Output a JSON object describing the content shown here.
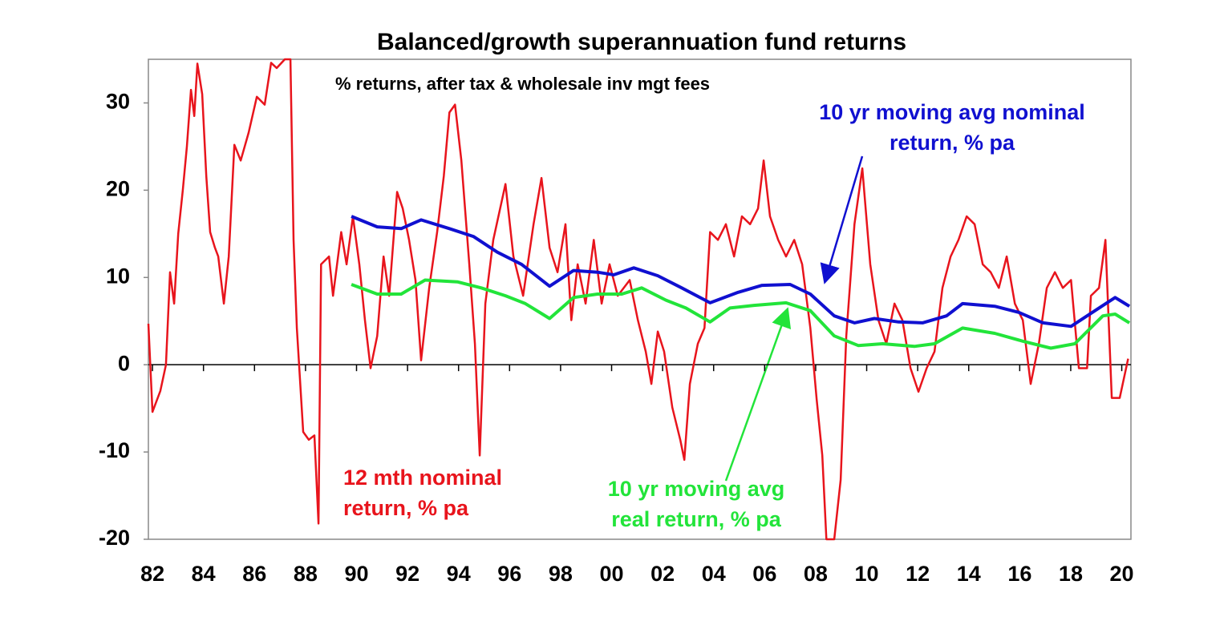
{
  "chart_data": {
    "type": "line",
    "title": "Balanced/growth superannuation fund returns",
    "subtitle": "% returns, after tax & wholesale inv mgt fees",
    "xlim": [
      1981.84,
      2020.36
    ],
    "ylim": [
      -20,
      35
    ],
    "yticks": [
      -20,
      -10,
      0,
      10,
      20,
      30
    ],
    "xticks": [
      {
        "value": 1982,
        "label": "82"
      },
      {
        "value": 1984,
        "label": "84"
      },
      {
        "value": 1986,
        "label": "86"
      },
      {
        "value": 1988,
        "label": "88"
      },
      {
        "value": 1990,
        "label": "90"
      },
      {
        "value": 1992,
        "label": "92"
      },
      {
        "value": 1994,
        "label": "94"
      },
      {
        "value": 1996,
        "label": "96"
      },
      {
        "value": 1998,
        "label": "98"
      },
      {
        "value": 2000,
        "label": "00"
      },
      {
        "value": 2002,
        "label": "02"
      },
      {
        "value": 2004,
        "label": "04"
      },
      {
        "value": 2006,
        "label": "06"
      },
      {
        "value": 2008,
        "label": "08"
      },
      {
        "value": 2010,
        "label": "10"
      },
      {
        "value": 2012,
        "label": "12"
      },
      {
        "value": 2014,
        "label": "14"
      },
      {
        "value": 2016,
        "label": "16"
      },
      {
        "value": 2018,
        "label": "18"
      },
      {
        "value": 2020,
        "label": "20"
      }
    ],
    "grid": false,
    "series": [
      {
        "name": "12 mth nominal return, % pa",
        "color": "#e8141c",
        "x": [
          1981.84,
          1982.0,
          1982.31,
          1982.53,
          1982.69,
          1982.85,
          1983.01,
          1983.19,
          1983.35,
          1983.51,
          1983.64,
          1983.76,
          1983.95,
          1984.11,
          1984.26,
          1984.45,
          1984.58,
          1984.8,
          1984.99,
          1985.21,
          1985.46,
          1985.77,
          1986.09,
          1986.4,
          1986.65,
          1986.87,
          1987.19,
          1987.41,
          1987.53,
          1987.66,
          1987.91,
          1988.13,
          1988.35,
          1988.51,
          1988.61,
          1988.92,
          1989.08,
          1989.4,
          1989.61,
          1989.86,
          1990.11,
          1990.33,
          1990.55,
          1990.81,
          1991.06,
          1991.28,
          1991.59,
          1991.81,
          1992.06,
          1992.31,
          1992.53,
          1992.85,
          1993.16,
          1993.42,
          1993.64,
          1993.86,
          1994.11,
          1994.42,
          1994.64,
          1994.83,
          1995.05,
          1995.36,
          1995.84,
          1996.15,
          1996.53,
          1996.94,
          1997.25,
          1997.57,
          1997.88,
          1998.19,
          1998.42,
          1998.67,
          1998.98,
          1999.3,
          1999.61,
          1999.92,
          2000.24,
          2000.71,
          2001.03,
          2001.34,
          2001.56,
          2001.81,
          2002.06,
          2002.38,
          2002.69,
          2002.85,
          2003.07,
          2003.38,
          2003.64,
          2003.86,
          2004.17,
          2004.48,
          2004.8,
          2005.11,
          2005.43,
          2005.74,
          2005.96,
          2006.21,
          2006.53,
          2006.84,
          2007.16,
          2007.47,
          2007.79,
          2008.04,
          2008.26,
          2008.42,
          2008.73,
          2008.98,
          2009.2,
          2009.52,
          2009.83,
          2010.14,
          2010.46,
          2010.77,
          2011.09,
          2011.4,
          2011.72,
          2012.03,
          2012.35,
          2012.66,
          2012.97,
          2013.29,
          2013.6,
          2013.92,
          2014.23,
          2014.55,
          2014.86,
          2015.18,
          2015.49,
          2015.81,
          2016.12,
          2016.43,
          2016.75,
          2017.06,
          2017.38,
          2017.69,
          2018.01,
          2018.32,
          2018.64,
          2018.79,
          2019.11,
          2019.36,
          2019.61,
          2019.92,
          2020.25
        ],
        "values": [
          4.7,
          -5.4,
          -3,
          0,
          10.6,
          7,
          15,
          20,
          25,
          31.5,
          28.5,
          34.5,
          31,
          21.6,
          15.2,
          13.4,
          12.4,
          7,
          12.4,
          25.2,
          23.4,
          26.6,
          30.7,
          29.8,
          34.6,
          34,
          35,
          35,
          14.3,
          4.2,
          -7.7,
          -8.6,
          -8.1,
          -18.2,
          11.5,
          12.4,
          7.9,
          15.2,
          11.5,
          17,
          11.5,
          5.1,
          -0.4,
          3.3,
          12.4,
          7.9,
          19.8,
          17.9,
          14.3,
          9.7,
          0.5,
          8.8,
          15.2,
          21.6,
          28.9,
          29.8,
          23.4,
          11.5,
          2.4,
          -10.4,
          7,
          14.3,
          20.7,
          12.4,
          7.9,
          16.1,
          21.4,
          13.4,
          10.6,
          16.1,
          5.1,
          11.5,
          7,
          14.3,
          7,
          11.5,
          7.9,
          9.7,
          5.1,
          1.5,
          -2.2,
          3.8,
          1.5,
          -4.9,
          -8.6,
          -10.9,
          -2.2,
          2.4,
          4.2,
          15.2,
          14.3,
          16.1,
          12.4,
          17,
          16.1,
          17.9,
          23.4,
          17,
          14.3,
          12.4,
          14.3,
          11.5,
          4.2,
          -4,
          -10.4,
          -20,
          -20,
          -13.2,
          3.3,
          16.1,
          22.5,
          11.5,
          5.1,
          2.4,
          7,
          5.1,
          -0.4,
          -3.1,
          -0.4,
          1.5,
          8.8,
          12.4,
          14.3,
          17,
          16.1,
          11.5,
          10.6,
          8.8,
          12.4,
          7,
          5.1,
          -2.2,
          2.4,
          8.8,
          10.6,
          8.8,
          9.7,
          -0.4,
          -0.4,
          7.9,
          8.8,
          14.3,
          -3.8,
          -3.8,
          0.7
        ]
      },
      {
        "name": "10 yr moving avg nominal return, % pa",
        "color": "#1010d0",
        "x": [
          1989.8,
          1990.81,
          1991.75,
          1992.53,
          1993.64,
          1994.58,
          1995.52,
          1996.47,
          1997.57,
          1998.51,
          1999.45,
          2000.08,
          2000.87,
          2001.81,
          2002.75,
          2003.86,
          2004.96,
          2005.9,
          2007.0,
          2007.79,
          2008.73,
          2009.52,
          2010.3,
          2011.25,
          2012.19,
          2013.13,
          2013.76,
          2015.02,
          2015.96,
          2016.91,
          2018.01,
          2019.11,
          2019.74,
          2020.3
        ],
        "values": [
          17.0,
          15.8,
          15.6,
          16.6,
          15.6,
          14.7,
          12.9,
          11.5,
          9.0,
          10.8,
          10.6,
          10.3,
          11.1,
          10.2,
          8.8,
          7.1,
          8.3,
          9.1,
          9.2,
          8.1,
          5.6,
          4.8,
          5.3,
          4.9,
          4.8,
          5.6,
          7.0,
          6.7,
          6.0,
          4.8,
          4.4,
          6.5,
          7.7,
          6.7
        ]
      },
      {
        "name": "10 yr moving avg real return, % pa",
        "color": "#22e43a",
        "x": [
          1989.8,
          1990.81,
          1991.75,
          1992.69,
          1993.95,
          1994.89,
          1995.84,
          1996.62,
          1997.57,
          1998.51,
          1999.45,
          2000.4,
          2001.18,
          2002.13,
          2002.91,
          2003.86,
          2004.64,
          2005.58,
          2006.84,
          2007.79,
          2008.73,
          2009.67,
          2010.62,
          2011.87,
          2012.66,
          2013.76,
          2015.02,
          2016.12,
          2017.22,
          2018.16,
          2019.26,
          2019.74,
          2020.3
        ],
        "values": [
          9.2,
          8.1,
          8.1,
          9.7,
          9.5,
          8.8,
          7.9,
          7.0,
          5.3,
          7.7,
          8.1,
          8.1,
          8.8,
          7.4,
          6.5,
          4.9,
          6.5,
          6.8,
          7.1,
          6.2,
          3.3,
          2.2,
          2.4,
          2.1,
          2.4,
          4.2,
          3.6,
          2.7,
          1.9,
          2.4,
          5.6,
          5.8,
          4.8
        ]
      }
    ],
    "annotations": [
      {
        "text": [
          "10 yr moving avg nominal",
          "return, % pa"
        ],
        "color": "#1010d0"
      },
      {
        "text": [
          "12 mth nominal",
          "return, % pa"
        ],
        "color": "#e8141c"
      },
      {
        "text": [
          "10 yr moving avg",
          "real return, % pa"
        ],
        "color": "#22e43a"
      }
    ]
  }
}
